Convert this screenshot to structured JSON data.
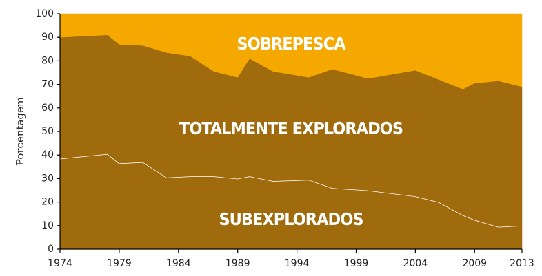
{
  "chart_data": {
    "type": "stacked_area",
    "y_label": "Porcentagem",
    "x": [
      1974,
      1978,
      1979,
      1981,
      1983,
      1985,
      1987,
      1989,
      1990,
      1992,
      1995,
      1997,
      2000,
      2004,
      2006,
      2008,
      2009,
      2011,
      2013
    ],
    "series": [
      {
        "name": "SUBEXPLORADOS",
        "color": "#a06b0c",
        "line_color": "#ffffff",
        "values": [
          38.5,
          40.5,
          36.5,
          37,
          30.5,
          31,
          31,
          30,
          31,
          29,
          29.5,
          26,
          25,
          22.5,
          20,
          14.5,
          12.5,
          9.5,
          10
        ]
      },
      {
        "name": "TOTALMENTE EXPLORADOS",
        "color": "#a06b0c",
        "values": [
          51.5,
          50.5,
          50.5,
          49.5,
          53,
          51,
          44.5,
          43,
          50,
          46.5,
          43.5,
          50.5,
          47.5,
          53.5,
          52,
          53.5,
          58,
          62,
          59
        ]
      },
      {
        "name": "SOBREPESCA",
        "color": "#f5a800",
        "values": [
          10,
          9,
          13,
          13.5,
          16.5,
          18,
          24.5,
          27,
          19,
          24.5,
          27,
          23.5,
          27.5,
          24,
          28,
          32,
          29.5,
          28.5,
          31
        ]
      }
    ],
    "xlim": [
      1974,
      2013
    ],
    "xticks": [
      1974,
      1979,
      1984,
      1989,
      1994,
      1999,
      2004,
      2009,
      2013
    ],
    "ylim": [
      0,
      100
    ],
    "yticks": [
      0,
      10,
      20,
      30,
      40,
      50,
      60,
      70,
      80,
      90,
      100
    ]
  }
}
